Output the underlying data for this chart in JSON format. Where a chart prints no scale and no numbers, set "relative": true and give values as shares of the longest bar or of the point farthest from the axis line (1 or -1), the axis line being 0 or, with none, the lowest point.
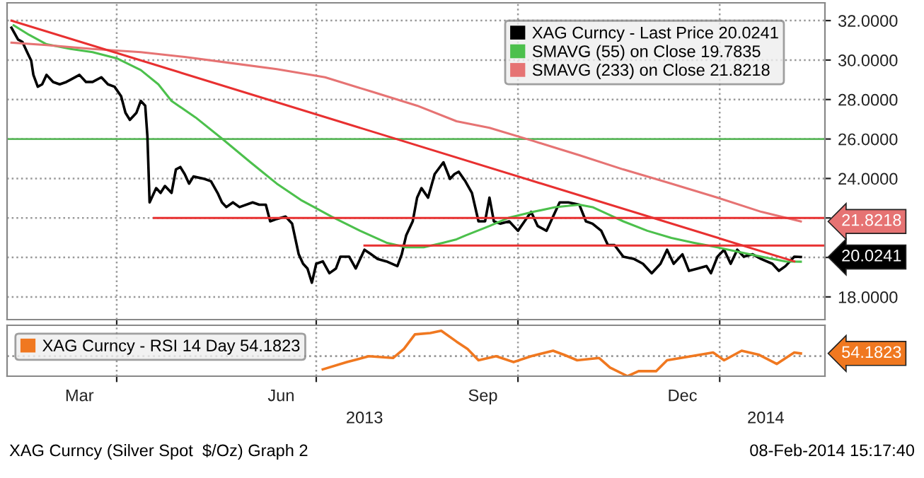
{
  "chart_data": [
    {
      "type": "line",
      "xlim": [
        "2013-02-10",
        "2014-02-18"
      ],
      "ylim": [
        16.85,
        32.9
      ],
      "yticks": [
        {
          "value": 18,
          "label": "18.0000"
        },
        {
          "value": 20,
          "label": null
        },
        {
          "value": 22,
          "label": null
        },
        {
          "value": 24,
          "label": "24.0000"
        },
        {
          "value": 26,
          "label": "26.0000"
        },
        {
          "value": 28,
          "label": "28.0000"
        },
        {
          "value": 30,
          "label": "30.0000"
        },
        {
          "value": 32,
          "label": "32.0000"
        }
      ],
      "xticks": [
        {
          "value": "2013-04-01",
          "label": null
        },
        {
          "value": "2013-07-01",
          "label": null
        },
        {
          "value": "2013-10-01",
          "label": null
        },
        {
          "value": "2014-01-01",
          "label": null
        }
      ],
      "tick_labels": "y",
      "grid": true,
      "legend": "top right",
      "series": [
        {
          "name": "XAG Curncy - Last Price 20.0241",
          "color": "#000000",
          "x": [
            "2013-02-12",
            "2013-02-15",
            "2013-02-17",
            "2013-02-19",
            "2013-02-21",
            "2013-02-22",
            "2013-02-24",
            "2013-02-26",
            "2013-02-28",
            "2013-03-03",
            "2013-03-06",
            "2013-03-09",
            "2013-03-11",
            "2013-03-15",
            "2013-03-18",
            "2013-03-21",
            "2013-03-25",
            "2013-03-28",
            "2013-03-31",
            "2013-04-03",
            "2013-04-05",
            "2013-04-07",
            "2013-04-10",
            "2013-04-12",
            "2013-04-14",
            "2013-04-15",
            "2013-04-16",
            "2013-04-19",
            "2013-04-21",
            "2013-04-23",
            "2013-04-26",
            "2013-04-28",
            "2013-04-30",
            "2013-05-02",
            "2013-05-04",
            "2013-05-06",
            "2013-05-11",
            "2013-05-14",
            "2013-05-17",
            "2013-05-19",
            "2013-05-21",
            "2013-05-24",
            "2013-05-27",
            "2013-06-02",
            "2013-06-05",
            "2013-06-08",
            "2013-06-10",
            "2013-06-13",
            "2013-06-17",
            "2013-06-20",
            "2013-06-23",
            "2013-06-25",
            "2013-06-27",
            "2013-06-29",
            "2013-07-01",
            "2013-07-04",
            "2013-07-07",
            "2013-07-10",
            "2013-07-12",
            "2013-07-16",
            "2013-07-19",
            "2013-07-23",
            "2013-07-26",
            "2013-07-29",
            "2013-08-02",
            "2013-08-07",
            "2013-08-09",
            "2013-08-11",
            "2013-08-14",
            "2013-08-16",
            "2013-08-18",
            "2013-08-21",
            "2013-08-24",
            "2013-08-28",
            "2013-08-31",
            "2013-09-02",
            "2013-09-04",
            "2013-09-07",
            "2013-09-10",
            "2013-09-13",
            "2013-09-16",
            "2013-09-18",
            "2013-09-20",
            "2013-09-23",
            "2013-09-27",
            "2013-10-01",
            "2013-10-04",
            "2013-10-07",
            "2013-10-10",
            "2013-10-14",
            "2013-10-17",
            "2013-10-20",
            "2013-10-24",
            "2013-10-29",
            "2013-11-01",
            "2013-11-04",
            "2013-11-08",
            "2013-11-11",
            "2013-11-14",
            "2013-11-18",
            "2013-11-23",
            "2013-11-27",
            "2013-12-01",
            "2013-12-05",
            "2013-12-08",
            "2013-12-11",
            "2013-12-15",
            "2013-12-18",
            "2013-12-22",
            "2013-12-26",
            "2013-12-28",
            "2013-12-31",
            "2014-01-03",
            "2014-01-06",
            "2014-01-09",
            "2014-01-12",
            "2014-01-16",
            "2014-01-20",
            "2014-01-25",
            "2014-01-28",
            "2014-01-31",
            "2014-02-04",
            "2014-02-07"
          ],
          "values": [
            31.64,
            31.04,
            30.92,
            30.44,
            29.97,
            29.25,
            28.65,
            28.77,
            29.25,
            28.89,
            28.77,
            28.89,
            29.01,
            29.25,
            28.89,
            28.89,
            29.13,
            28.77,
            28.65,
            28.17,
            27.33,
            26.97,
            27.33,
            27.93,
            27.69,
            26.14,
            22.79,
            23.51,
            23.27,
            23.62,
            23.27,
            24.46,
            24.58,
            24.22,
            23.74,
            24.1,
            23.98,
            23.86,
            23.27,
            22.79,
            22.55,
            22.79,
            22.55,
            22.79,
            22.67,
            22.67,
            21.83,
            21.95,
            22.07,
            21.71,
            20.16,
            19.68,
            19.44,
            18.72,
            19.68,
            19.8,
            19.2,
            19.44,
            20.04,
            20.04,
            19.44,
            20.39,
            20.16,
            19.92,
            19.8,
            19.56,
            20.16,
            21.11,
            21.83,
            23.03,
            23.51,
            23.03,
            24.22,
            24.82,
            23.98,
            24.22,
            24.34,
            23.86,
            23.27,
            21.83,
            21.83,
            23.03,
            21.83,
            21.71,
            21.83,
            21.35,
            21.83,
            22.31,
            21.59,
            21.35,
            22.07,
            22.79,
            22.79,
            22.67,
            21.83,
            21.71,
            21.35,
            20.63,
            20.63,
            20.04,
            19.92,
            19.68,
            19.2,
            19.68,
            20.39,
            19.68,
            20.16,
            19.32,
            19.44,
            19.56,
            19.2,
            20.04,
            20.39,
            19.68,
            20.39,
            20.04,
            20.16,
            19.92,
            19.68,
            19.32,
            19.56,
            20.04,
            20.0241
          ]
        },
        {
          "name": "SMAVG (55) on Close 19.7835",
          "color": "#4cc04c",
          "x": [
            "2013-02-13",
            "2013-02-20",
            "2013-02-28",
            "2013-03-11",
            "2013-03-21",
            "2013-04-01",
            "2013-04-12",
            "2013-04-20",
            "2013-04-26",
            "2013-05-07",
            "2013-05-19",
            "2013-06-01",
            "2013-06-13",
            "2013-06-24",
            "2013-06-30",
            "2013-07-08",
            "2013-07-21",
            "2013-08-02",
            "2013-08-11",
            "2013-08-19",
            "2013-08-28",
            "2013-09-03",
            "2013-09-07",
            "2013-09-18",
            "2013-09-27",
            "2013-10-08",
            "2013-10-18",
            "2013-10-29",
            "2013-11-04",
            "2013-11-11",
            "2013-11-18",
            "2013-11-29",
            "2013-12-10",
            "2013-12-20",
            "2013-12-31",
            "2014-01-10",
            "2014-01-20",
            "2014-01-31",
            "2014-02-07"
          ],
          "values": [
            31.76,
            31.28,
            30.8,
            30.56,
            30.4,
            30.09,
            29.49,
            28.77,
            27.93,
            27.09,
            26.02,
            24.82,
            23.74,
            22.91,
            22.55,
            22.07,
            21.35,
            20.75,
            20.51,
            20.51,
            20.75,
            20.92,
            21.11,
            21.59,
            22.02,
            22.31,
            22.55,
            22.67,
            22.55,
            22.19,
            21.83,
            21.35,
            20.99,
            20.75,
            20.51,
            20.27,
            20.04,
            19.8,
            19.7835
          ]
        },
        {
          "name": "SMAVG (233) on Close 21.8218",
          "color": "#e67373",
          "x": [
            "2013-02-12",
            "2013-02-28",
            "2013-03-21",
            "2013-04-12",
            "2013-05-02",
            "2013-05-23",
            "2013-06-13",
            "2013-07-05",
            "2013-07-26",
            "2013-08-16",
            "2013-09-03",
            "2013-09-18",
            "2013-10-08",
            "2013-10-29",
            "2013-11-18",
            "2013-12-10",
            "2013-12-31",
            "2014-01-20",
            "2014-02-07"
          ],
          "values": [
            30.88,
            30.76,
            30.56,
            30.4,
            30.16,
            29.85,
            29.54,
            29.13,
            28.41,
            27.69,
            26.9,
            26.57,
            25.9,
            25.18,
            24.46,
            23.74,
            23.03,
            22.31,
            21.8218
          ]
        },
        {
          "color": "#e83030",
          "x": [
            "2013-02-12",
            "2014-02-04"
          ],
          "values": [
            32.0,
            19.8
          ]
        },
        {
          "color": "#e83030",
          "x": [
            "2013-04-18",
            "2014-02-18"
          ],
          "values": [
            22.0,
            22.0
          ]
        },
        {
          "color": "#e83030",
          "x": [
            "2013-07-23",
            "2014-02-18"
          ],
          "values": [
            20.6,
            20.6
          ]
        }
      ],
      "ref_lines": [
        {
          "axis": "y",
          "value": 26,
          "color": "#5cb85c",
          "line_style": "solid"
        }
      ],
      "annotations": [
        {
          "text": "21.8218",
          "x": "2014-02-07",
          "y": 21.8218
        },
        {
          "text": "20.0241",
          "x": "2014-02-07",
          "y": 20.0241
        }
      ]
    },
    {
      "type": "line",
      "relative": true,
      "xlim": [
        "2013-02-10",
        "2014-02-18"
      ],
      "xticks": [
        {
          "value": "2013-03-15",
          "label": "Mar"
        },
        {
          "value": "2013-04-01",
          "label": null
        },
        {
          "value": "2013-06-15",
          "label": "Jun"
        },
        {
          "value": "2013-07-01",
          "label": null
        },
        {
          "value": "2013-09-15",
          "label": "Sep"
        },
        {
          "value": "2013-10-01",
          "label": null
        },
        {
          "value": "2013-12-15",
          "label": "Dec"
        },
        {
          "value": "2014-01-01",
          "label": null
        }
      ],
      "x2lim": [
        "2013-02-10",
        "2014-02-18"
      ],
      "x2ticks": [
        {
          "value": "2013-07-23",
          "label": "2013"
        },
        {
          "value": "2014-01-22",
          "label": "2014"
        }
      ],
      "tick_labels": "x",
      "grid": "x",
      "legend": "top left",
      "series": [
        {
          "name": "XAG Curncy - RSI 14 Day 54.1823",
          "color": "#f07820",
          "x": [
            "2013-07-04",
            "2013-07-15",
            "2013-07-25",
            "2013-08-05",
            "2013-08-10",
            "2013-08-15",
            "2013-08-22",
            "2013-08-27",
            "2013-09-03",
            "2013-09-08",
            "2013-09-13",
            "2013-09-21",
            "2013-09-29",
            "2013-10-07",
            "2013-10-17",
            "2013-10-22",
            "2013-10-28",
            "2013-11-07",
            "2013-11-12",
            "2013-11-20",
            "2013-11-25",
            "2013-12-03",
            "2013-12-08",
            "2013-12-19",
            "2013-12-29",
            "2014-01-03",
            "2014-01-11",
            "2014-01-19",
            "2014-01-27",
            "2014-02-04",
            "2014-02-07"
          ],
          "values": [
            0.15,
            0.31,
            0.44,
            0.4,
            0.6,
            0.92,
            0.95,
            1.0,
            0.76,
            0.6,
            0.35,
            0.44,
            0.31,
            0.44,
            0.56,
            0.47,
            0.35,
            0.4,
            0.19,
            0.0,
            0.11,
            0.11,
            0.35,
            0.44,
            0.52,
            0.35,
            0.56,
            0.47,
            0.27,
            0.52,
            0.5
          ]
        }
      ],
      "ref_lines": [
        {
          "axis": "y",
          "value": 0.44,
          "color": "#999999",
          "line_style": "dotted"
        }
      ],
      "annotations": [
        {
          "text": "54.1823",
          "x": "2014-02-07",
          "y": 0.5
        },
        "XAG Curncy (Silver Spot  $/Oz) Graph 2",
        "08-Feb-2014 15:17:40"
      ]
    }
  ]
}
